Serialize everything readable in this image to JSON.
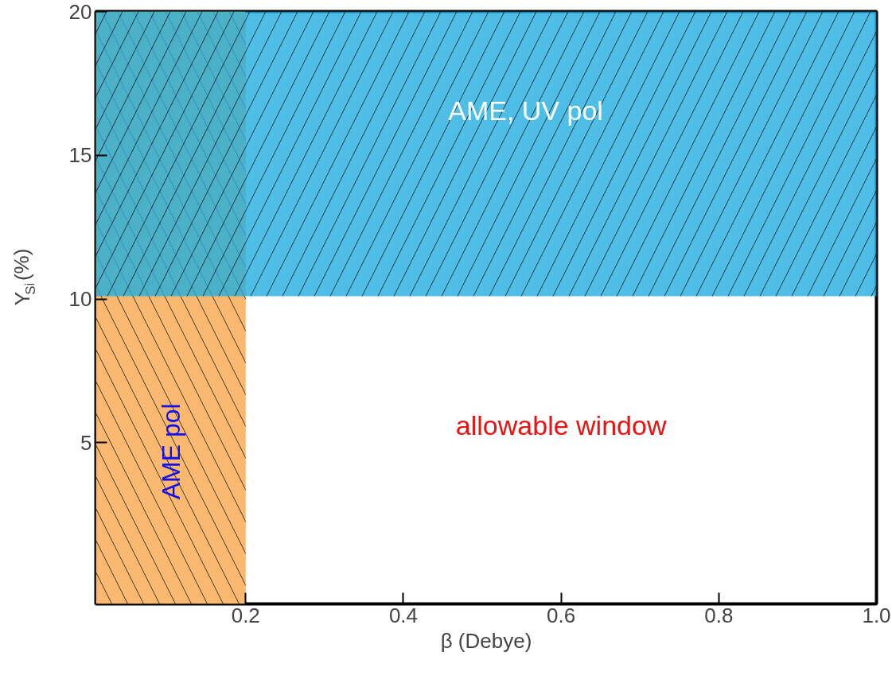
{
  "chart_data": {
    "type": "area",
    "xlabel": "β (Debye)",
    "ylabel": "Y$_{Si}$(%)",
    "xlim": [
      0.01,
      1.0
    ],
    "ylim": [
      -0.6,
      20
    ],
    "xticks": [
      0.2,
      0.4,
      0.6,
      0.8,
      {
        "value": 1.0,
        "label": "1.0"
      }
    ],
    "yticks": [
      5,
      10,
      15,
      20
    ],
    "grid": false,
    "bands": [
      {
        "axis": "x",
        "from": 0.01,
        "to": 0.2,
        "label": "AME pol",
        "color": "#fbb870"
      },
      {
        "axis": "y",
        "from": 10.1,
        "to": 20,
        "label": "AME, UV pol",
        "color": "#22aee0"
      }
    ],
    "annotations": [
      "allowable window"
    ]
  }
}
